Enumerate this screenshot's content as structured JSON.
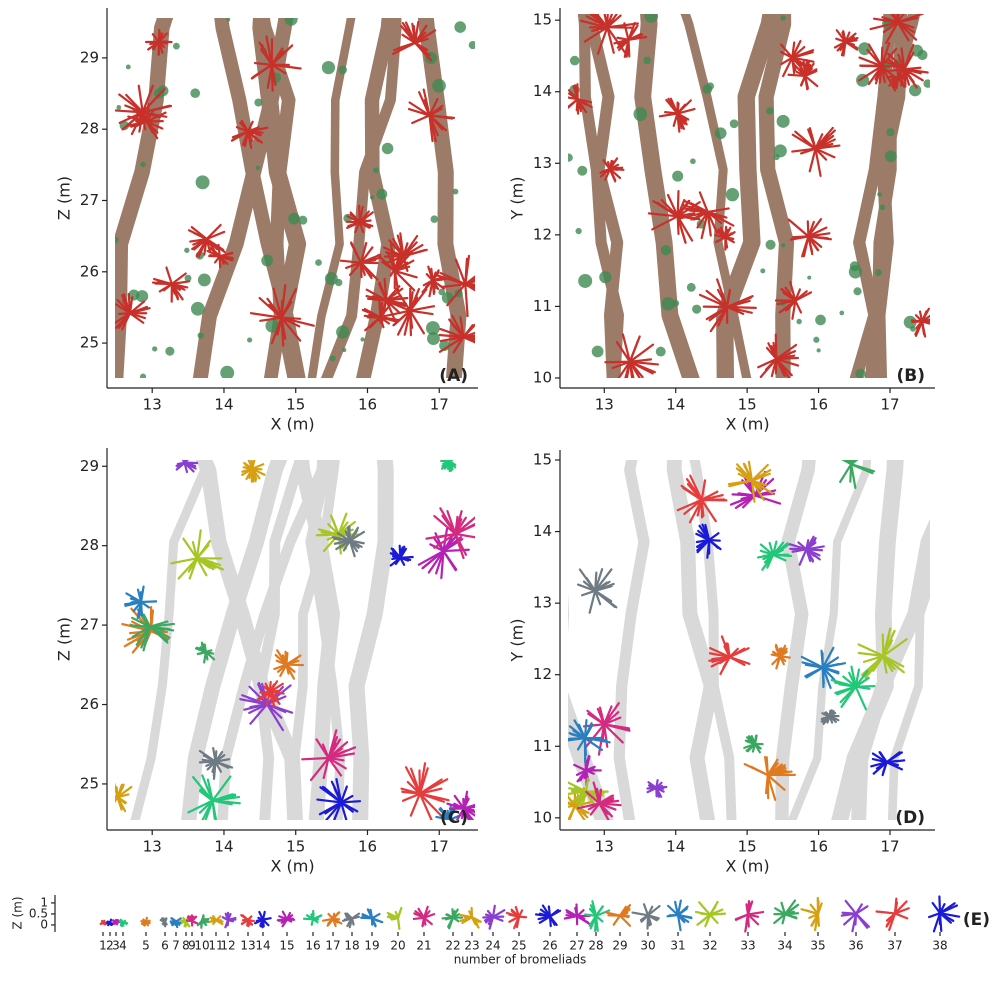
{
  "chart_data": [
    {
      "type": "image",
      "label": "(A)",
      "xlabel": "X (m)",
      "ylabel": "Z (m)",
      "xlim": [
        12.37,
        17.54
      ],
      "ylim": [
        24.37,
        29.7
      ],
      "xticks": [
        13,
        14,
        15,
        16,
        17
      ],
      "yticks": [
        25,
        26,
        27,
        28,
        29
      ]
    },
    {
      "type": "image",
      "label": "(B)",
      "xlabel": "X (m)",
      "ylabel": "Y (m)",
      "xlim": [
        12.38,
        17.63
      ],
      "ylim": [
        9.86,
        15.17
      ],
      "xticks": [
        13,
        14,
        15,
        16,
        17
      ],
      "yticks": [
        10,
        11,
        12,
        13,
        14,
        15
      ]
    },
    {
      "type": "image",
      "label": "(C)",
      "xlabel": "X (m)",
      "ylabel": "Z (m)",
      "xlim": [
        12.37,
        17.54
      ],
      "ylim": [
        24.42,
        29.23
      ],
      "xticks": [
        13,
        14,
        15,
        16,
        17
      ],
      "yticks": [
        25,
        26,
        27,
        28,
        29
      ]
    },
    {
      "type": "image",
      "label": "(D)",
      "xlabel": "X (m)",
      "ylabel": "Y (m)",
      "xlim": [
        12.38,
        17.63
      ],
      "ylim": [
        9.83,
        15.14
      ],
      "xticks": [
        13,
        14,
        15,
        16,
        17
      ],
      "yticks": [
        10,
        11,
        12,
        13,
        14,
        15
      ]
    },
    {
      "type": "strip",
      "label": "(E)",
      "xlabel": "number of bromeliads",
      "ylabel": "Z (m)",
      "ylim": [
        -0.32,
        1.36
      ],
      "yticks": [
        0,
        0.5,
        1
      ],
      "categories": [
        1,
        2,
        3,
        4,
        5,
        6,
        7,
        8,
        9,
        10,
        11,
        12,
        13,
        14,
        15,
        16,
        17,
        18,
        19,
        20,
        21,
        22,
        23,
        24,
        25,
        26,
        27,
        28,
        29,
        30,
        31,
        32,
        33,
        34,
        35,
        36,
        37,
        38
      ]
    }
  ]
}
